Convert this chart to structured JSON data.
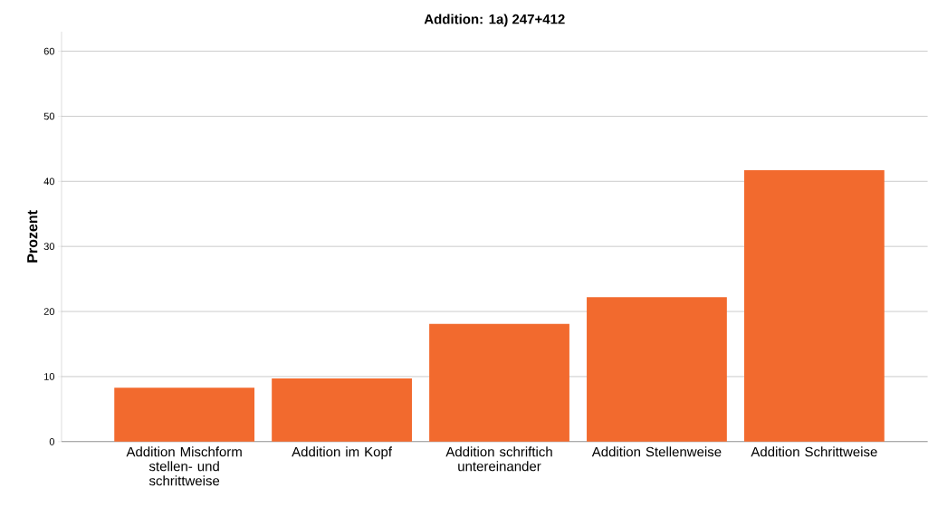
{
  "chart_data": {
    "type": "bar",
    "title": "Addition: 1a)  247+412",
    "ylabel": "Prozent",
    "categories": [
      "Addition Mischform stellen- und schrittweise",
      "Addition im Kopf",
      "Addition schriftich untereinander",
      "Addition Stellenweise",
      "Addition Schrittweise"
    ],
    "values": [
      8.3,
      9.7,
      18.1,
      22.2,
      41.7
    ],
    "color": "#f26a2e",
    "ylim": [
      0,
      63
    ],
    "yticks": [
      0,
      10,
      20,
      30,
      40,
      50,
      60
    ],
    "grid": "y"
  }
}
